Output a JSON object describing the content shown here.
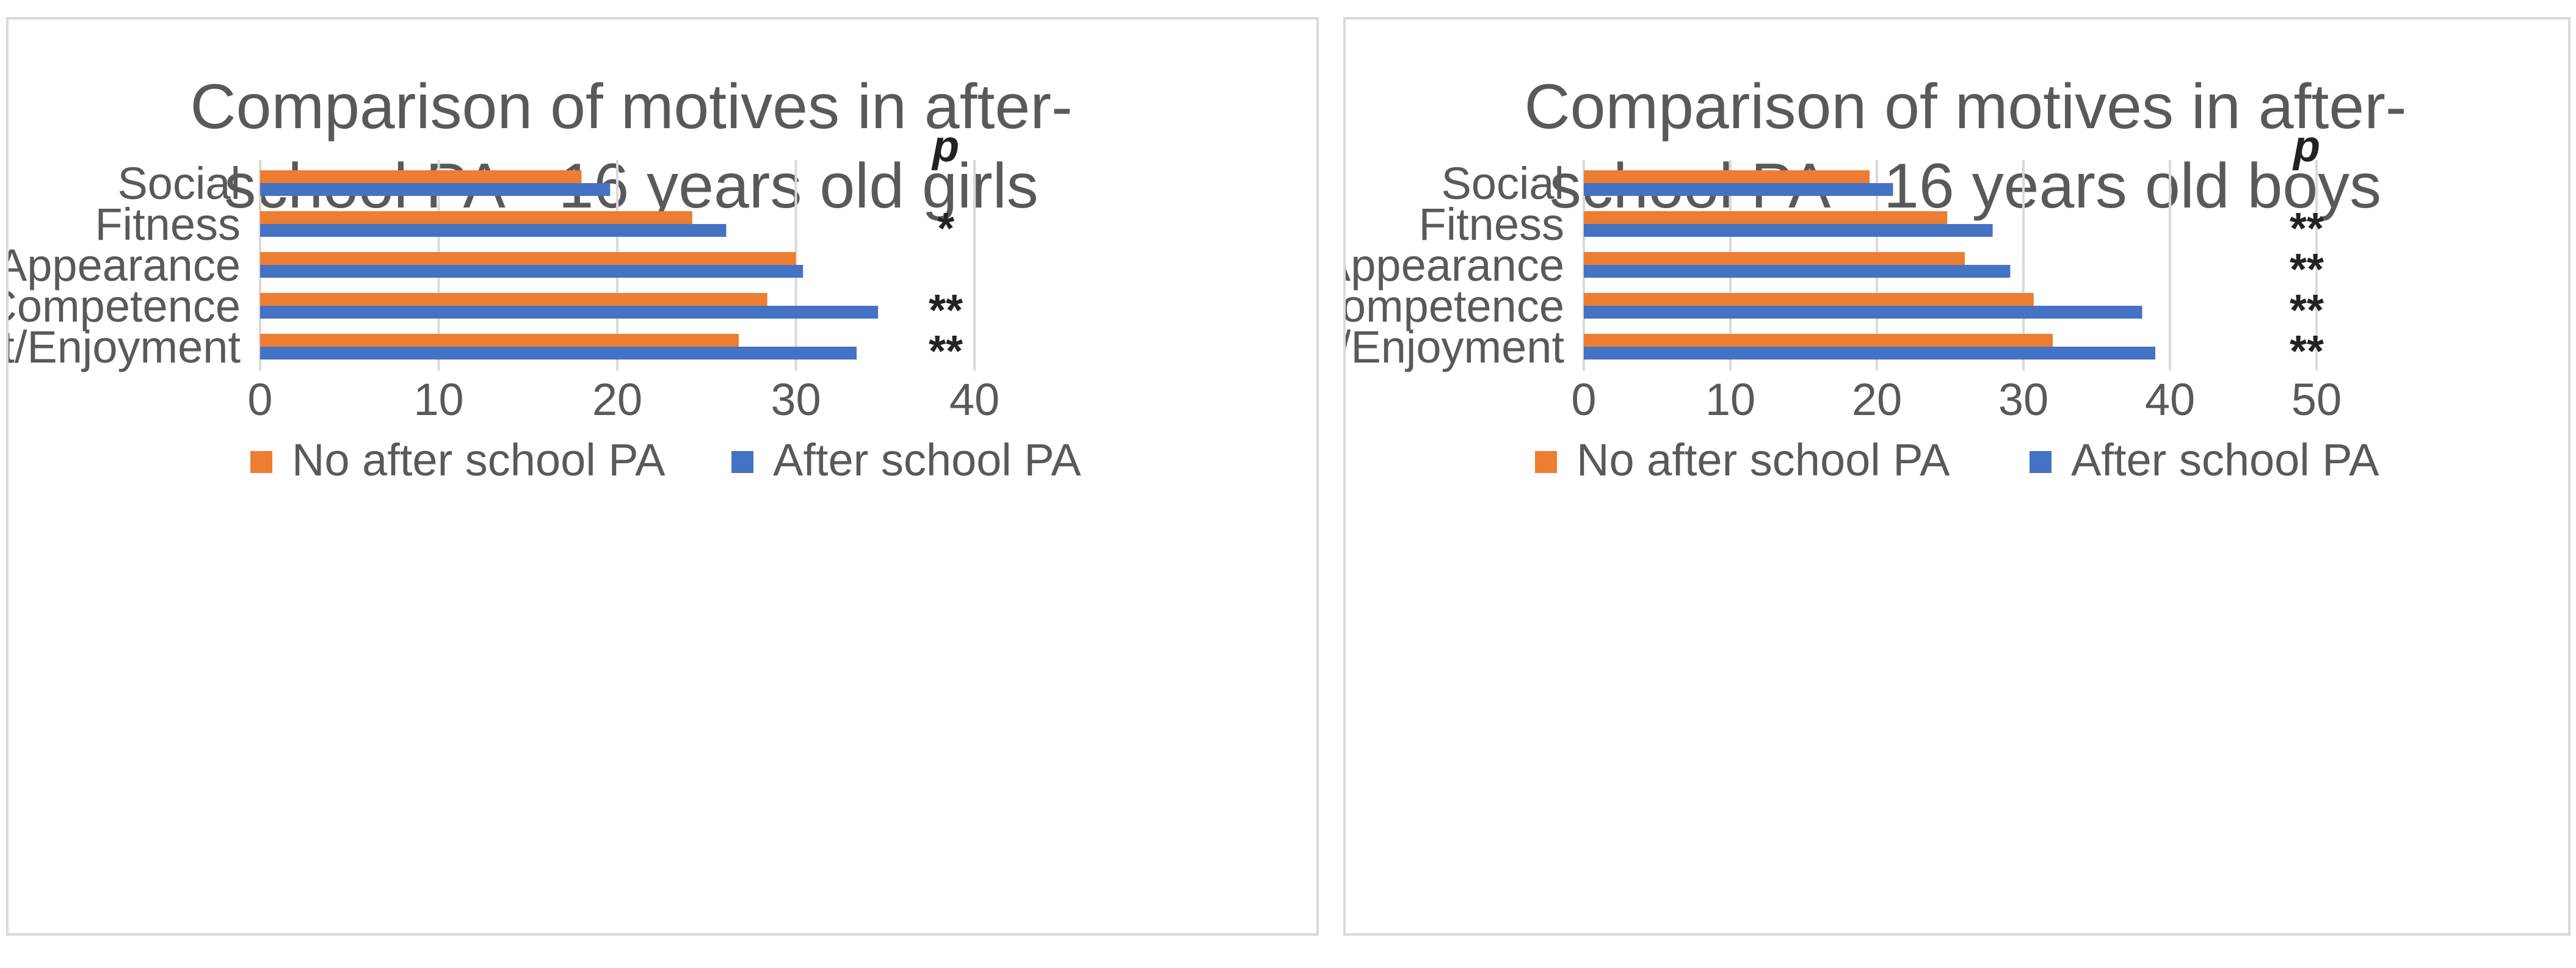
{
  "chart_data": [
    {
      "type": "bar",
      "orientation": "horizontal",
      "title_lines": [
        "Comparison of motives in after-",
        "school PA - 16 years old girls"
      ],
      "categories": [
        "Social",
        "Fitness",
        "Appearance",
        "Competence",
        "Interest/Enjoyment"
      ],
      "series": [
        {
          "name": "No after school PA",
          "color": "#ed7d31",
          "values": [
            18.0,
            24.2,
            30.0,
            28.4,
            26.8
          ]
        },
        {
          "name": "After school PA",
          "color": "#4472c4",
          "values": [
            19.6,
            26.1,
            30.4,
            34.6,
            33.4
          ]
        }
      ],
      "significance_header": "p",
      "significance": [
        "",
        "*",
        "",
        "**",
        "**"
      ],
      "xlim": [
        0,
        40
      ],
      "xticks": [
        "0",
        "10",
        "20",
        "30",
        "40"
      ],
      "grid": true,
      "legend_position": "bottom"
    },
    {
      "type": "bar",
      "orientation": "horizontal",
      "title_lines": [
        "Comparison of motives in after-",
        "school PA - 16 years old boys"
      ],
      "categories": [
        "Social",
        "Fitness",
        "Appearance",
        "Competence",
        "Interest/Enjoyment"
      ],
      "series": [
        {
          "name": "No after school PA",
          "color": "#ed7d31",
          "values": [
            19.5,
            24.8,
            26.0,
            30.7,
            32.0
          ]
        },
        {
          "name": "After school PA",
          "color": "#4472c4",
          "values": [
            21.1,
            27.9,
            29.1,
            38.1,
            39.0
          ]
        }
      ],
      "significance_header": "p",
      "significance": [
        "",
        "**",
        "**",
        "**",
        "**"
      ],
      "xlim": [
        0,
        50
      ],
      "xticks": [
        "0",
        "10",
        "20",
        "30",
        "40",
        "50"
      ],
      "grid": true,
      "legend_position": "bottom"
    }
  ]
}
